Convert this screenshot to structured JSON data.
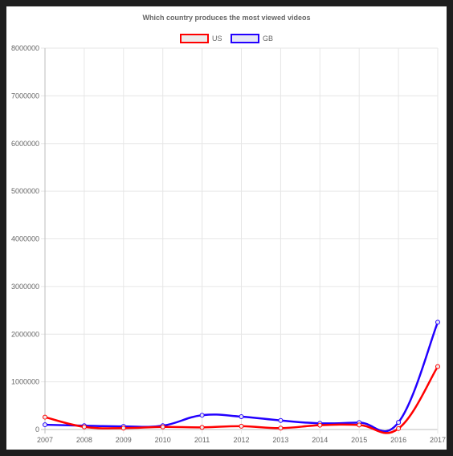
{
  "chart_data": {
    "type": "line",
    "title": "Which country produces the most viewed videos",
    "x": [
      "2007",
      "2008",
      "2009",
      "2010",
      "2011",
      "2012",
      "2013",
      "2014",
      "2015",
      "2016",
      "2017"
    ],
    "ylim": [
      0,
      8000000
    ],
    "yticks": [
      "0",
      "1000000",
      "2000000",
      "3000000",
      "4000000",
      "5000000",
      "6000000",
      "7000000",
      "8000000"
    ],
    "grid": true,
    "legend_position": "top",
    "series": [
      {
        "name": "US",
        "color": "#ff0000",
        "fill": "#ececec",
        "values": [
          260000,
          55000,
          30000,
          55000,
          45000,
          70000,
          30000,
          90000,
          95000,
          20000,
          1320000
        ]
      },
      {
        "name": "GB",
        "color": "#2200ff",
        "fill": "#e6e6f5",
        "values": [
          100000,
          80000,
          65000,
          80000,
          300000,
          270000,
          190000,
          130000,
          145000,
          150000,
          2250000
        ]
      }
    ]
  }
}
